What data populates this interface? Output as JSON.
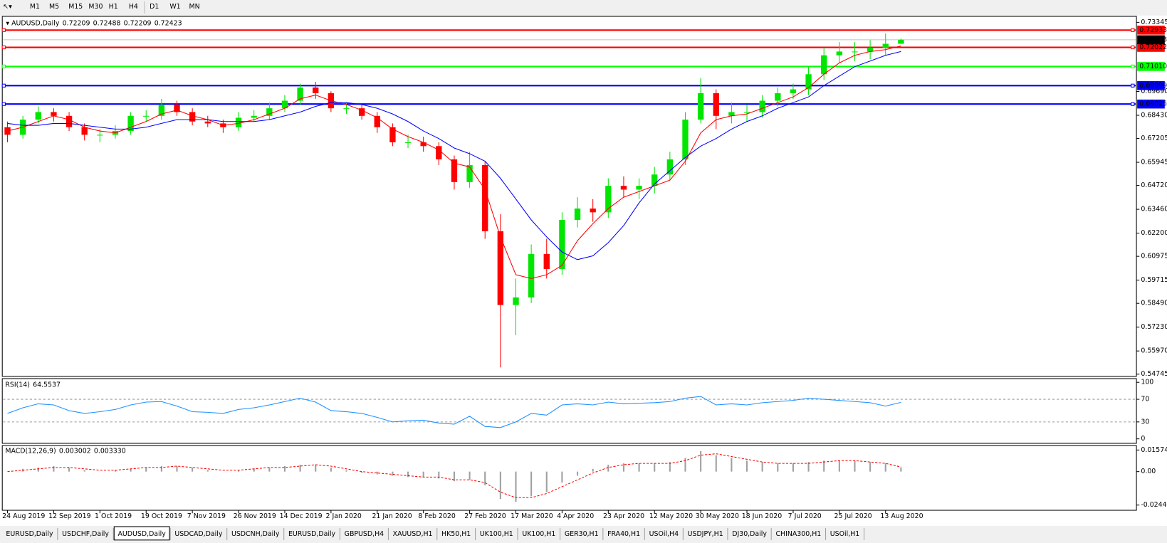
{
  "toolbar": {
    "timeframes": [
      "M1",
      "M5",
      "M15",
      "M30",
      "H1",
      "H4",
      "D1",
      "W1",
      "MN"
    ]
  },
  "tabs": {
    "items": [
      "EURUSD,Daily",
      "USDCHF,Daily",
      "AUDUSD,Daily",
      "USDCAD,Daily",
      "USDCNH,Daily",
      "EURUSD,Daily",
      "GBPUSD,H4",
      "XAUUSD,H1",
      "HK50,H1",
      "UK100,H1",
      "UK100,H1",
      "GER30,H1",
      "FRA40,H1",
      "USOil,H4",
      "USDJPY,H1",
      "DJ30,Daily",
      "CHINA300,H1",
      "USOil,H1"
    ],
    "active": 2
  },
  "chart_data": [
    {
      "type": "candlestick",
      "title": "AUDUSD,Daily",
      "categories": [
        "24 Aug 2019",
        null,
        null,
        "12 Sep 2019",
        null,
        null,
        "1 Oct 2019",
        null,
        null,
        "19 Oct 2019",
        null,
        null,
        "7 Nov 2019",
        null,
        null,
        "26 Nov 2019",
        null,
        null,
        "14 Dec 2019",
        null,
        null,
        "2 Jan 2020",
        null,
        null,
        "21 Jan 2020",
        null,
        null,
        "8 Feb 2020",
        null,
        null,
        "27 Feb 2020",
        null,
        null,
        "17 Mar 2020",
        null,
        null,
        "4 Apr 2020",
        null,
        null,
        "23 Apr 2020",
        null,
        null,
        "12 May 2020",
        null,
        null,
        "30 May 2020",
        null,
        null,
        "18 Jun 2020",
        null,
        null,
        "7 Jul 2020",
        null,
        null,
        "25 Jul 2020",
        null,
        null,
        "13 Aug 2020",
        null
      ],
      "open": [
        0.678,
        0.674,
        0.682,
        0.686,
        0.684,
        0.678,
        0.674,
        0.674,
        0.676,
        0.684,
        0.684,
        0.69,
        0.686,
        0.681,
        0.68,
        0.678,
        0.683,
        0.684,
        0.688,
        0.692,
        0.699,
        0.696,
        0.688,
        0.688,
        0.684,
        0.678,
        0.67,
        0.67,
        0.668,
        0.661,
        0.649,
        0.658,
        0.623,
        0.584,
        0.588,
        0.611,
        0.603,
        0.629,
        0.635,
        0.633,
        0.647,
        0.645,
        0.647,
        0.653,
        0.661,
        0.682,
        0.696,
        0.684,
        0.686,
        0.686,
        0.692,
        0.696,
        0.698,
        0.706,
        0.716,
        0.718,
        0.718,
        0.72,
        0.72209
      ],
      "high": [
        0.681,
        0.684,
        0.689,
        0.688,
        0.686,
        0.68,
        0.677,
        0.679,
        0.686,
        0.687,
        0.693,
        0.692,
        0.688,
        0.684,
        0.682,
        0.686,
        0.687,
        0.691,
        0.695,
        0.701,
        0.702,
        0.697,
        0.691,
        0.69,
        0.686,
        0.68,
        0.674,
        0.673,
        0.67,
        0.663,
        0.665,
        0.66,
        0.632,
        0.598,
        0.616,
        0.619,
        0.633,
        0.641,
        0.64,
        0.651,
        0.652,
        0.651,
        0.657,
        0.665,
        0.686,
        0.704,
        0.698,
        0.691,
        0.69,
        0.695,
        0.699,
        0.701,
        0.71,
        0.72,
        0.723,
        0.723,
        0.724,
        0.7275,
        0.72488
      ],
      "low": [
        0.67,
        0.672,
        0.68,
        0.681,
        0.676,
        0.671,
        0.67,
        0.672,
        0.674,
        0.681,
        0.682,
        0.684,
        0.679,
        0.678,
        0.675,
        0.676,
        0.681,
        0.682,
        0.686,
        0.69,
        0.693,
        0.686,
        0.685,
        0.682,
        0.675,
        0.668,
        0.667,
        0.665,
        0.658,
        0.645,
        0.646,
        0.619,
        0.551,
        0.568,
        0.585,
        0.598,
        0.6,
        0.625,
        0.628,
        0.63,
        0.641,
        0.64,
        0.643,
        0.65,
        0.658,
        0.68,
        0.677,
        0.68,
        0.681,
        0.683,
        0.689,
        0.693,
        0.695,
        0.703,
        0.712,
        0.713,
        0.714,
        0.716,
        0.72209
      ],
      "close": [
        0.674,
        0.682,
        0.686,
        0.684,
        0.678,
        0.674,
        0.674,
        0.676,
        0.684,
        0.684,
        0.69,
        0.686,
        0.681,
        0.68,
        0.678,
        0.683,
        0.684,
        0.688,
        0.692,
        0.699,
        0.696,
        0.688,
        0.688,
        0.684,
        0.678,
        0.67,
        0.67,
        0.668,
        0.661,
        0.649,
        0.658,
        0.623,
        0.584,
        0.588,
        0.611,
        0.603,
        0.629,
        0.635,
        0.633,
        0.647,
        0.645,
        0.647,
        0.653,
        0.661,
        0.682,
        0.696,
        0.684,
        0.686,
        0.686,
        0.692,
        0.696,
        0.698,
        0.706,
        0.716,
        0.718,
        0.718,
        0.72,
        0.72209,
        0.72423
      ],
      "up_color": "#00e600",
      "down_color": "#ff0000",
      "lines": [
        {
          "color": "#ff0000",
          "values": [
            0.676,
            0.678,
            0.681,
            0.684,
            0.682,
            0.678,
            0.676,
            0.675,
            0.678,
            0.681,
            0.685,
            0.687,
            0.684,
            0.682,
            0.679,
            0.68,
            0.682,
            0.685,
            0.688,
            0.693,
            0.695,
            0.692,
            0.69,
            0.687,
            0.683,
            0.677,
            0.673,
            0.67,
            0.666,
            0.659,
            0.657,
            0.645,
            0.62,
            0.6,
            0.598,
            0.6,
            0.605,
            0.618,
            0.627,
            0.635,
            0.641,
            0.644,
            0.647,
            0.65,
            0.66,
            0.675,
            0.682,
            0.684,
            0.685,
            0.688,
            0.691,
            0.694,
            0.699,
            0.706,
            0.712,
            0.716,
            0.718,
            0.719,
            0.721
          ]
        },
        {
          "color": "#0000ff",
          "values": [
            0.68,
            0.679,
            0.679,
            0.68,
            0.68,
            0.679,
            0.678,
            0.677,
            0.677,
            0.678,
            0.68,
            0.682,
            0.682,
            0.682,
            0.681,
            0.681,
            0.681,
            0.682,
            0.684,
            0.686,
            0.689,
            0.691,
            0.691,
            0.69,
            0.688,
            0.685,
            0.681,
            0.676,
            0.672,
            0.667,
            0.664,
            0.66,
            0.651,
            0.64,
            0.629,
            0.62,
            0.612,
            0.608,
            0.61,
            0.617,
            0.626,
            0.638,
            0.648,
            0.655,
            0.662,
            0.668,
            0.672,
            0.677,
            0.681,
            0.684,
            0.688,
            0.691,
            0.694,
            0.7,
            0.705,
            0.71,
            0.713,
            0.716,
            0.718
          ]
        }
      ],
      "levels": [
        {
          "value": 0.72933,
          "color": "#ff0000"
        },
        {
          "value": 0.72022,
          "color": "#ff0000"
        },
        {
          "value": 0.7101,
          "label": "0.71010",
          "color": "#00ff00"
        },
        {
          "value": 0.69999,
          "color": "#0000ff"
        },
        {
          "value": 0.69025,
          "color": "#0000ff"
        }
      ],
      "ylim": [
        0.54745,
        0.73345
      ],
      "yticks": [
        0.73345,
        {
          "value": 0.6969,
          "label": "0.69690"
        },
        {
          "value": 0.6843,
          "label": "0.68430"
        },
        0.67205,
        0.65945,
        {
          "value": 0.6472,
          "label": "0.64720"
        },
        {
          "value": 0.6346,
          "label": "0.63460"
        },
        {
          "value": 0.622,
          "label": "0.62200"
        },
        0.60975,
        0.59715,
        {
          "value": 0.5849,
          "label": "0.58490"
        },
        {
          "value": 0.5723,
          "label": "0.57230"
        },
        {
          "value": 0.5597,
          "label": "0.55970"
        },
        0.54745
      ]
    },
    {
      "type": "line",
      "title": "RSI(14)",
      "color": "#1e90ff",
      "values": [
        45,
        55,
        62,
        60,
        50,
        45,
        48,
        52,
        60,
        65,
        66,
        58,
        48,
        47,
        45,
        52,
        55,
        60,
        66,
        72,
        65,
        50,
        48,
        45,
        38,
        30,
        32,
        33,
        28,
        26,
        40,
        22,
        20,
        30,
        45,
        42,
        60,
        62,
        60,
        65,
        62,
        63,
        64,
        66,
        72,
        75,
        60,
        62,
        60,
        64,
        66,
        68,
        72,
        70,
        68,
        66,
        64,
        58,
        64.5537
      ],
      "ylim": [
        0,
        100
      ],
      "yticks": [
        0,
        30,
        70,
        100
      ]
    },
    {
      "type": "macd",
      "title": "MACD(12,26,9)",
      "readout": [
        0.003002,
        {
          "value": 0.00333,
          "label": "0.003330"
        }
      ],
      "histogram": {
        "color": "#a0a0a0",
        "values": [
          0,
          0.002,
          0.003,
          0.004,
          0.003,
          0.001,
          0,
          0.001,
          0.002,
          0.003,
          0.004,
          0.004,
          0.003,
          0.001,
          0,
          0.001,
          0.002,
          0.003,
          0.004,
          0.005,
          0.005,
          0.003,
          0.001,
          -0.001,
          -0.002,
          -0.003,
          -0.004,
          -0.004,
          -0.005,
          -0.007,
          -0.006,
          -0.01,
          -0.02,
          -0.022,
          -0.018,
          -0.015,
          -0.008,
          -0.003,
          0.002,
          0.005,
          0.006,
          0.006,
          0.006,
          0.007,
          0.01,
          0.015,
          0.012,
          0.01,
          0.008,
          0.007,
          0.006,
          0.006,
          0.007,
          0.008,
          0.008,
          0.008,
          0.007,
          0.006,
          0.003002
        ]
      },
      "signal": {
        "color": "#ff0000",
        "values": [
          0,
          0.001,
          0.002,
          0.003,
          0.003,
          0.002,
          0.001,
          0.001,
          0.002,
          0.003,
          0.003,
          0.004,
          0.003,
          0.002,
          0.001,
          0.001,
          0.002,
          0.003,
          0.003,
          0.004,
          0.005,
          0.004,
          0.002,
          0,
          -0.001,
          -0.002,
          -0.003,
          -0.004,
          -0.004,
          -0.006,
          -0.006,
          -0.008,
          -0.015,
          -0.019,
          -0.019,
          -0.016,
          -0.011,
          -0.006,
          -0.001,
          0.003,
          0.005,
          0.006,
          0.006,
          0.006,
          0.008,
          0.012,
          0.013,
          0.011,
          0.009,
          0.007,
          0.006,
          0.006,
          0.006,
          0.007,
          0.008,
          0.008,
          0.007,
          0.006,
          0.00333
        ]
      },
      "ylim": [
        -0.024412,
        0.015741
      ],
      "yticks": [
        -0.024412,
        {
          "value": 0,
          "label": "0.00"
        },
        0.015741
      ]
    }
  ]
}
